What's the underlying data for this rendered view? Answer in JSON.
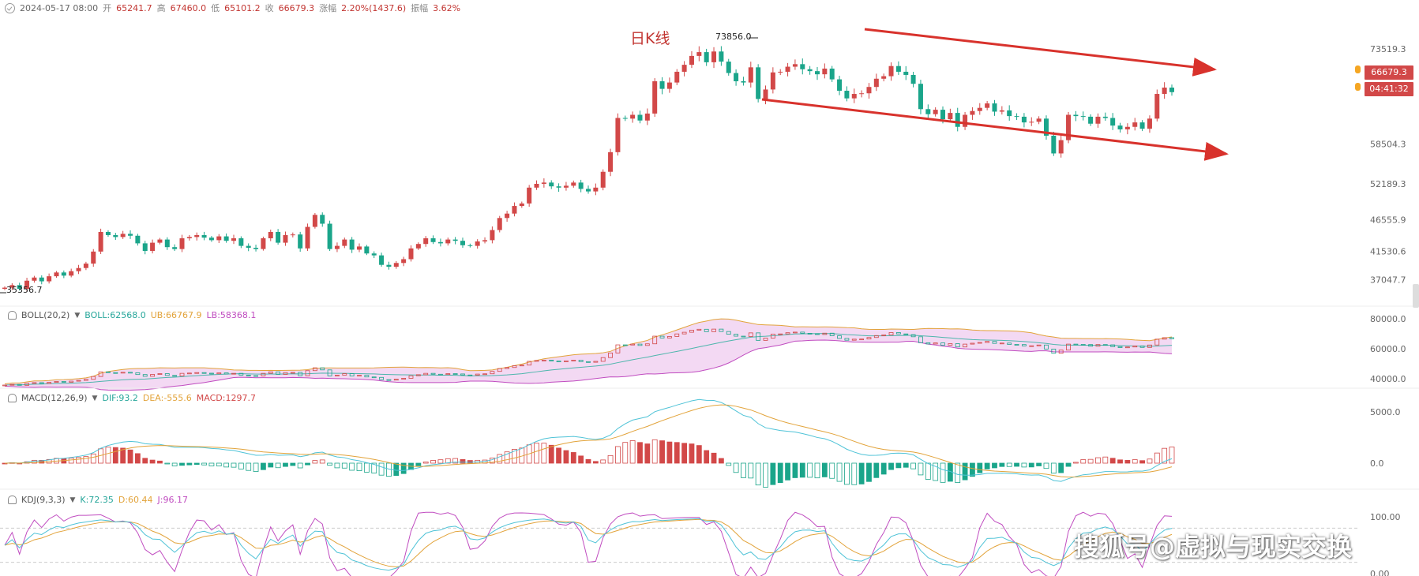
{
  "header": {
    "datetime": "2024-05-17 08:00",
    "open_label": "开",
    "open": "65241.7",
    "high_label": "高",
    "high": "67460.0",
    "low_label": "低",
    "low": "65101.2",
    "close_label": "收",
    "close": "66679.3",
    "change_label": "涨幅",
    "change": "2.20%(1437.6)",
    "amp_label": "振幅",
    "amp": "3.62%"
  },
  "main_title": "日K线",
  "high_marker": "73856.0",
  "low_marker": "35356.7",
  "price_tag": "66679.3",
  "countdown_tag": "04:41:32",
  "watermark": "搜狐号@虚拟与现实交换",
  "boll": {
    "name": "BOLL(20,2)",
    "boll": "BOLL:62568.0",
    "ub": "UB:66767.9",
    "lb": "LB:58368.1"
  },
  "macd": {
    "name": "MACD(12,26,9)",
    "dif": "DIF:93.2",
    "dea": "DEA:-555.6",
    "macd": "MACD:1297.7"
  },
  "kdj": {
    "name": "KDJ(9,3,3)",
    "k": "K:72.35",
    "d": "D:60.44",
    "j": "J:96.17"
  },
  "colors": {
    "up": "#d24848",
    "down": "#1aa58a",
    "boll_mid": "#4db6ac",
    "boll_ub": "#e2a33a",
    "boll_lb": "#c04cc0",
    "channel": "#d8322c"
  },
  "chart_data": [
    {
      "type": "candlestick",
      "title": "日K线",
      "y_ticks": [
        "73519.3",
        "66679.3",
        "58504.3",
        "52189.3",
        "46555.9",
        "41530.6",
        "37047.7"
      ],
      "ylim": [
        34500,
        76000
      ],
      "ohlc_close_series": [
        35800,
        36200,
        35600,
        36900,
        37400,
        36800,
        37600,
        38200,
        37700,
        38400,
        38900,
        39600,
        41500,
        44600,
        44100,
        43800,
        44300,
        44000,
        42800,
        41600,
        42900,
        43400,
        42200,
        41900,
        43600,
        43800,
        44100,
        43700,
        43300,
        43900,
        43200,
        43600,
        42400,
        42100,
        41900,
        43600,
        44600,
        42900,
        44100,
        44200,
        42000,
        45400,
        47300,
        45900,
        41900,
        42400,
        43400,
        41800,
        42300,
        41200,
        40900,
        39400,
        39100,
        39700,
        40300,
        42000,
        42700,
        43600,
        43000,
        42800,
        43400,
        43200,
        42500,
        42400,
        43100,
        43300,
        44900,
        46800,
        47500,
        48700,
        49100,
        51600,
        52200,
        52400,
        51800,
        51600,
        51900,
        52400,
        51400,
        51000,
        51600,
        54100,
        57200,
        62600,
        62500,
        63100,
        62200,
        63300,
        68400,
        67200,
        68200,
        69900,
        71000,
        72400,
        73000,
        71400,
        73100,
        71500,
        69700,
        68400,
        68200,
        70600,
        65600,
        67100,
        69800,
        69900,
        70700,
        71100,
        70300,
        70000,
        69500,
        70400,
        68700,
        66900,
        65700,
        66400,
        66500,
        67500,
        68800,
        69200,
        70800,
        69900,
        69400,
        68000,
        64000,
        63200,
        63900,
        62400,
        63400,
        61200,
        63100,
        63700,
        64200,
        64900,
        63600,
        63800,
        62900,
        62800,
        61900,
        62000,
        62500,
        59800,
        57000,
        59100,
        63100,
        62900,
        62800,
        61700,
        62800,
        62600,
        61400,
        60800,
        61200,
        61900,
        60900,
        62500,
        66400,
        67400,
        66679
      ]
    },
    {
      "type": "line",
      "title": "BOLL(20,2)",
      "y_ticks": [
        "80000.0",
        "60000.0",
        "40000.0"
      ]
    },
    {
      "type": "bar",
      "title": "MACD(12,26,9)",
      "y_ticks": [
        "5000.0",
        "0.0"
      ]
    },
    {
      "type": "line",
      "title": "KDJ(9,3,3)",
      "y_ticks": [
        "100.00",
        "0.00"
      ]
    }
  ]
}
